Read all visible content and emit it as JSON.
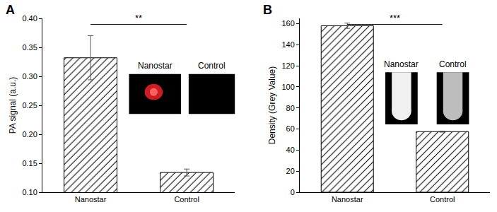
{
  "chart_data": [
    {
      "type": "bar",
      "title": "A",
      "categories": [
        "Nanostar",
        "Control"
      ],
      "values": [
        0.332,
        0.134
      ],
      "errors": [
        0.038,
        0.006
      ],
      "color": "#ffffff",
      "y_label": "PA signal (a.u.)",
      "ylim": [
        0.1,
        0.4
      ],
      "yticks": [
        {
          "value": 0.1,
          "label": "0.10"
        },
        0.15,
        {
          "value": 0.2,
          "label": "0.20"
        },
        0.25,
        {
          "value": 0.3,
          "label": "0.30"
        },
        0.35,
        {
          "value": 0.4,
          "label": "0.40"
        }
      ],
      "significance": "**",
      "inset_labels": [
        "Nanostar",
        "Control"
      ]
    },
    {
      "type": "bar",
      "title": "B",
      "categories": [
        "Nanostar",
        "Control"
      ],
      "values": [
        158,
        57.5
      ],
      "errors": [
        2.5,
        0.5
      ],
      "color": "#ffffff",
      "y_label": "Density (Grey Value)",
      "ylim": [
        0,
        165
      ],
      "yticks": [
        0,
        20,
        40,
        60,
        80,
        100,
        120,
        140,
        160
      ],
      "significance": "***",
      "inset_labels": [
        "Nanostar",
        "Control"
      ]
    }
  ]
}
